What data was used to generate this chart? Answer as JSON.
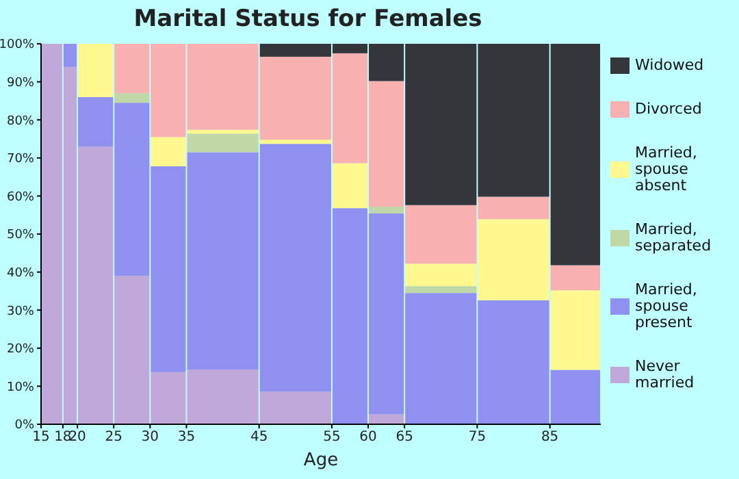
{
  "chart_data": {
    "type": "bar",
    "stacked": true,
    "title": "Marital Status for Females",
    "xlabel": "Age",
    "x": [
      16.5,
      19,
      22.5,
      27.5,
      32.5,
      40,
      50,
      57.5,
      62.5,
      70,
      80,
      88.5
    ],
    "xlim": [
      15,
      92
    ],
    "xticks": [
      15,
      18,
      20,
      25,
      30,
      35,
      45,
      55,
      60,
      65,
      75,
      85
    ],
    "ylim": [
      0,
      100
    ],
    "yticks": [
      {
        "value": 0,
        "label": "0%"
      },
      {
        "value": 10,
        "label": "10%"
      },
      {
        "value": 20,
        "label": "20%"
      },
      {
        "value": 30,
        "label": "30%"
      },
      {
        "value": 40,
        "label": "40%"
      },
      {
        "value": 50,
        "label": "50%"
      },
      {
        "value": 60,
        "label": "60%"
      },
      {
        "value": 70,
        "label": "70%"
      },
      {
        "value": 80,
        "label": "80%"
      },
      {
        "value": 90,
        "label": "90%"
      },
      {
        "value": 100,
        "label": "100%"
      }
    ],
    "grid": false,
    "legend": "right",
    "series": [
      {
        "name": "Never married",
        "color": "#c0a8d8",
        "values": [
          100,
          93.9,
          73,
          39,
          13.7,
          14.4,
          8.6,
          0,
          2.6,
          0,
          0,
          0
        ]
      },
      {
        "name": "Married, spouse present",
        "color": "#9090f0",
        "values": [
          0,
          6.1,
          13,
          45.5,
          54.1,
          57.1,
          65.1,
          56.8,
          52.8,
          34.5,
          32.6,
          14.3
        ]
      },
      {
        "name": "Married, separated",
        "color": "#c0d8a8",
        "values": [
          0,
          0,
          0,
          2.5,
          0,
          4.9,
          0,
          0,
          1.8,
          1.8,
          0,
          0
        ]
      },
      {
        "name": "Married, spouse absent",
        "color": "#fff890",
        "values": [
          0,
          0,
          14,
          0,
          7.7,
          1,
          1.1,
          11.8,
          0,
          5.9,
          21.3,
          20.9
        ]
      },
      {
        "name": "Divorced",
        "color": "#f8b0b0",
        "values": [
          0,
          0,
          0,
          13,
          24.5,
          22.6,
          21.8,
          28.9,
          33,
          15.4,
          5.9,
          6.6
        ]
      },
      {
        "name": "Widowed",
        "color": "#35363b",
        "values": [
          0,
          0,
          0,
          0,
          0,
          0,
          3.4,
          2.5,
          9.8,
          42.4,
          40.2,
          58.2
        ]
      }
    ]
  }
}
